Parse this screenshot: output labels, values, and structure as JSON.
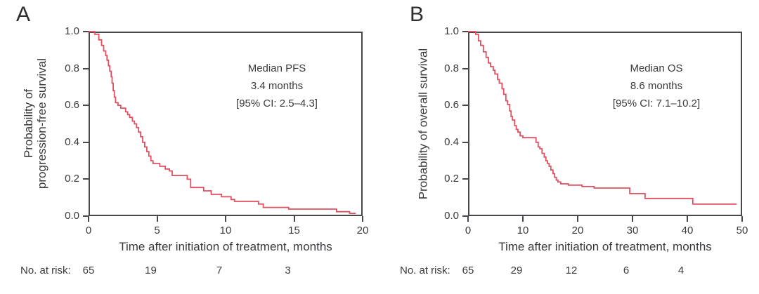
{
  "figure": {
    "background": "#ffffff",
    "text_color": "#3a3a3e",
    "axis_color": "#48484c",
    "curve_color": "#e05060"
  },
  "chart_data": [
    {
      "type": "line",
      "subtype": "kaplan-meier-step",
      "panel_label": "A",
      "ylabel_lines": [
        "Probability of",
        "progression-free survival"
      ],
      "xlabel": "Time after initiation of treatment, months",
      "annotation": [
        "Median PFS",
        "3.4 months",
        "[95% CI: 2.5–4.3]"
      ],
      "xlim": [
        0,
        20
      ],
      "ylim": [
        0,
        1.0
      ],
      "x_ticks": [
        "0",
        "5",
        "10",
        "15",
        "20"
      ],
      "y_ticks": [
        "1.0",
        "0.8",
        "0.6",
        "0.4",
        "0.2",
        "0.0"
      ],
      "grid": false,
      "legend": "none",
      "risk_label": "No. at risk:",
      "risk_counts": [
        {
          "month": 0,
          "n": "65"
        },
        {
          "month": 5,
          "n": "19"
        },
        {
          "month": 10,
          "n": "7"
        },
        {
          "month": 15,
          "n": "3"
        }
      ],
      "steps": [
        [
          0,
          1.0
        ],
        [
          0.45,
          0.985
        ],
        [
          0.75,
          0.955
        ],
        [
          0.95,
          0.925
        ],
        [
          1.1,
          0.895
        ],
        [
          1.25,
          0.87
        ],
        [
          1.35,
          0.845
        ],
        [
          1.45,
          0.815
        ],
        [
          1.55,
          0.785
        ],
        [
          1.65,
          0.755
        ],
        [
          1.72,
          0.72
        ],
        [
          1.8,
          0.68
        ],
        [
          1.88,
          0.645
        ],
        [
          1.97,
          0.615
        ],
        [
          2.15,
          0.6
        ],
        [
          2.35,
          0.585
        ],
        [
          2.7,
          0.565
        ],
        [
          2.85,
          0.55
        ],
        [
          3.0,
          0.535
        ],
        [
          3.2,
          0.515
        ],
        [
          3.35,
          0.5
        ],
        [
          3.5,
          0.48
        ],
        [
          3.65,
          0.455
        ],
        [
          3.8,
          0.43
        ],
        [
          3.95,
          0.4
        ],
        [
          4.1,
          0.375
        ],
        [
          4.25,
          0.35
        ],
        [
          4.4,
          0.325
        ],
        [
          4.55,
          0.3
        ],
        [
          4.7,
          0.285
        ],
        [
          5.2,
          0.27
        ],
        [
          5.6,
          0.255
        ],
        [
          5.9,
          0.245
        ],
        [
          6.1,
          0.22
        ],
        [
          7.2,
          0.2
        ],
        [
          7.45,
          0.155
        ],
        [
          8.4,
          0.137
        ],
        [
          8.95,
          0.118
        ],
        [
          9.7,
          0.105
        ],
        [
          10.4,
          0.09
        ],
        [
          10.65,
          0.08
        ],
        [
          12.4,
          0.065
        ],
        [
          12.75,
          0.047
        ],
        [
          14.6,
          0.038
        ],
        [
          18.1,
          0.024
        ],
        [
          19.05,
          0.015
        ]
      ],
      "end_month": 19.5
    },
    {
      "type": "line",
      "subtype": "kaplan-meier-step",
      "panel_label": "B",
      "ylabel_lines": [
        "Probability of overall survival"
      ],
      "xlabel": "Time after initiation of treatment, months",
      "annotation": [
        "Median OS",
        "8.6 months",
        "[95% CI: 7.1–10.2]"
      ],
      "xlim": [
        0,
        50
      ],
      "ylim": [
        0,
        1.0
      ],
      "x_ticks": [
        "0",
        "10",
        "20",
        "30",
        "40",
        "50"
      ],
      "y_ticks": [
        "1.0",
        "0.8",
        "0.6",
        "0.4",
        "0.2",
        "0.0"
      ],
      "grid": false,
      "legend": "none",
      "risk_label": "No. at risk:",
      "risk_counts": [
        {
          "month": 0,
          "n": "65"
        },
        {
          "month": 10,
          "n": "29"
        },
        {
          "month": 20,
          "n": "12"
        },
        {
          "month": 30,
          "n": "6"
        },
        {
          "month": 40,
          "n": "4"
        }
      ],
      "steps": [
        [
          0,
          1.0
        ],
        [
          1.4,
          0.985
        ],
        [
          1.9,
          0.95
        ],
        [
          2.3,
          0.925
        ],
        [
          2.8,
          0.89
        ],
        [
          3.3,
          0.86
        ],
        [
          3.7,
          0.83
        ],
        [
          4.1,
          0.81
        ],
        [
          4.6,
          0.79
        ],
        [
          4.9,
          0.77
        ],
        [
          5.4,
          0.74
        ],
        [
          5.7,
          0.72
        ],
        [
          6.2,
          0.69
        ],
        [
          6.5,
          0.66
        ],
        [
          6.9,
          0.625
        ],
        [
          7.2,
          0.605
        ],
        [
          7.6,
          0.57
        ],
        [
          7.85,
          0.54
        ],
        [
          8.1,
          0.52
        ],
        [
          8.5,
          0.49
        ],
        [
          8.8,
          0.47
        ],
        [
          9.1,
          0.455
        ],
        [
          9.5,
          0.435
        ],
        [
          10.0,
          0.425
        ],
        [
          12.4,
          0.4
        ],
        [
          12.8,
          0.375
        ],
        [
          13.1,
          0.365
        ],
        [
          13.5,
          0.34
        ],
        [
          13.9,
          0.32
        ],
        [
          14.2,
          0.3
        ],
        [
          14.5,
          0.285
        ],
        [
          14.8,
          0.27
        ],
        [
          15.1,
          0.25
        ],
        [
          15.5,
          0.23
        ],
        [
          15.8,
          0.21
        ],
        [
          16.1,
          0.195
        ],
        [
          16.4,
          0.185
        ],
        [
          16.9,
          0.175
        ],
        [
          18.3,
          0.168
        ],
        [
          20.8,
          0.16
        ],
        [
          23.0,
          0.152
        ],
        [
          29.5,
          0.122
        ],
        [
          32.3,
          0.096
        ],
        [
          41.0,
          0.065
        ]
      ],
      "end_month": 49.0
    }
  ]
}
